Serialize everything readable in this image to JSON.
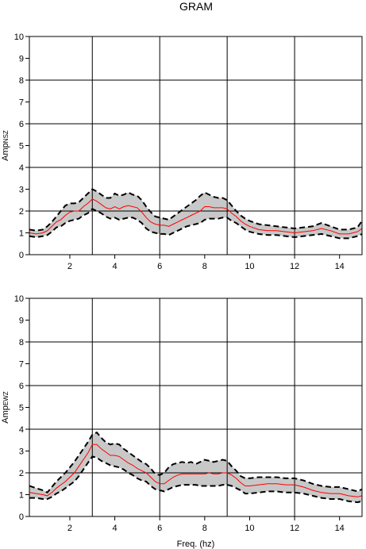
{
  "title": "GRAM",
  "chart_data": [
    {
      "type": "area",
      "ylabel_main": "Amp",
      "ylabel_sub": "NSZ",
      "xlabel": "",
      "xlim": [
        0.2,
        15.0
      ],
      "ylim": [
        0,
        10
      ],
      "xticks": [
        2,
        4,
        6,
        8,
        10,
        12,
        14
      ],
      "yticks": [
        0,
        1,
        2,
        3,
        4,
        5,
        6,
        7,
        8,
        9,
        10
      ],
      "grid_x": [
        3,
        6,
        9,
        12
      ],
      "grid_y": [
        2,
        4,
        6,
        8,
        10
      ],
      "colors": {
        "mean": "#ff0000",
        "band": "#c8c8c8",
        "bound": "#000000"
      },
      "x": [
        0.2,
        0.5,
        0.8,
        1.0,
        1.2,
        1.4,
        1.6,
        1.8,
        2.0,
        2.2,
        2.4,
        2.6,
        2.8,
        3.0,
        3.2,
        3.4,
        3.6,
        3.8,
        4.0,
        4.2,
        4.4,
        4.6,
        4.8,
        5.0,
        5.2,
        5.4,
        5.6,
        5.8,
        6.0,
        6.2,
        6.4,
        6.6,
        6.8,
        7.0,
        7.2,
        7.4,
        7.6,
        7.8,
        8.0,
        8.2,
        8.4,
        8.6,
        8.8,
        9.0,
        9.2,
        9.4,
        9.6,
        9.8,
        10.0,
        10.4,
        10.8,
        11.2,
        11.6,
        12.0,
        12.4,
        12.8,
        13.2,
        13.6,
        14.0,
        14.4,
        14.8,
        15.0
      ],
      "series": [
        {
          "values": [
            1.0,
            0.95,
            1.0,
            1.1,
            1.3,
            1.5,
            1.6,
            1.8,
            1.95,
            2.0,
            2.0,
            2.2,
            2.35,
            2.55,
            2.45,
            2.3,
            2.15,
            2.1,
            2.2,
            2.1,
            2.2,
            2.25,
            2.2,
            2.15,
            1.95,
            1.7,
            1.5,
            1.4,
            1.35,
            1.35,
            1.3,
            1.4,
            1.5,
            1.6,
            1.7,
            1.8,
            1.9,
            2.0,
            2.2,
            2.2,
            2.15,
            2.15,
            2.15,
            2.1,
            1.9,
            1.75,
            1.55,
            1.4,
            1.3,
            1.15,
            1.1,
            1.1,
            1.05,
            1.0,
            1.05,
            1.1,
            1.2,
            1.1,
            0.95,
            0.95,
            1.05,
            1.2
          ]
        },
        {
          "values": [
            1.15,
            1.1,
            1.15,
            1.3,
            1.5,
            1.75,
            2.0,
            2.25,
            2.35,
            2.35,
            2.4,
            2.6,
            2.8,
            3.0,
            2.9,
            2.75,
            2.6,
            2.6,
            2.8,
            2.7,
            2.75,
            2.85,
            2.75,
            2.7,
            2.5,
            2.2,
            1.95,
            1.75,
            1.7,
            1.65,
            1.6,
            1.75,
            1.9,
            2.05,
            2.2,
            2.35,
            2.5,
            2.7,
            2.85,
            2.75,
            2.65,
            2.6,
            2.6,
            2.5,
            2.25,
            2.0,
            1.8,
            1.65,
            1.55,
            1.4,
            1.35,
            1.3,
            1.25,
            1.2,
            1.25,
            1.3,
            1.45,
            1.3,
            1.15,
            1.15,
            1.25,
            1.55
          ]
        },
        {
          "values": [
            0.85,
            0.8,
            0.85,
            0.9,
            1.05,
            1.25,
            1.3,
            1.45,
            1.55,
            1.6,
            1.65,
            1.8,
            1.9,
            2.1,
            2.0,
            1.9,
            1.75,
            1.65,
            1.7,
            1.6,
            1.65,
            1.7,
            1.7,
            1.6,
            1.45,
            1.2,
            1.05,
            1.0,
            0.95,
            0.95,
            0.9,
            1.0,
            1.1,
            1.2,
            1.3,
            1.35,
            1.4,
            1.45,
            1.6,
            1.65,
            1.65,
            1.65,
            1.7,
            1.7,
            1.55,
            1.45,
            1.3,
            1.15,
            1.05,
            0.95,
            0.9,
            0.9,
            0.85,
            0.8,
            0.85,
            0.9,
            0.95,
            0.85,
            0.75,
            0.75,
            0.85,
            0.95
          ]
        }
      ]
    },
    {
      "type": "area",
      "ylabel_main": "Amp",
      "ylabel_sub": "EWZ",
      "xlabel": "Freq. (hz)",
      "xlim": [
        0.2,
        15.0
      ],
      "ylim": [
        0,
        10
      ],
      "xticks": [
        2,
        4,
        6,
        8,
        10,
        12,
        14
      ],
      "yticks": [
        0,
        1,
        2,
        3,
        4,
        5,
        6,
        7,
        8,
        9,
        10
      ],
      "grid_x": [
        3,
        6,
        9,
        12
      ],
      "grid_y": [
        2,
        4,
        6,
        8,
        10
      ],
      "colors": {
        "mean": "#ff0000",
        "band": "#c8c8c8",
        "bound": "#000000"
      },
      "x": [
        0.2,
        0.5,
        0.8,
        1.0,
        1.2,
        1.4,
        1.6,
        1.8,
        2.0,
        2.2,
        2.4,
        2.6,
        2.8,
        3.0,
        3.2,
        3.4,
        3.6,
        3.8,
        4.0,
        4.2,
        4.4,
        4.6,
        4.8,
        5.0,
        5.2,
        5.4,
        5.6,
        5.8,
        6.0,
        6.2,
        6.4,
        6.6,
        6.8,
        7.0,
        7.2,
        7.4,
        7.6,
        7.8,
        8.0,
        8.2,
        8.4,
        8.6,
        8.8,
        9.0,
        9.2,
        9.4,
        9.6,
        9.8,
        10.0,
        10.4,
        10.8,
        11.2,
        11.6,
        12.0,
        12.4,
        12.8,
        13.2,
        13.6,
        14.0,
        14.4,
        14.8,
        15.0
      ],
      "series": [
        {
          "values": [
            1.1,
            1.05,
            1.0,
            0.95,
            1.1,
            1.3,
            1.45,
            1.6,
            1.8,
            2.0,
            2.3,
            2.6,
            2.9,
            3.3,
            3.3,
            3.1,
            2.95,
            2.8,
            2.8,
            2.75,
            2.6,
            2.45,
            2.35,
            2.2,
            2.1,
            2.0,
            1.8,
            1.6,
            1.5,
            1.5,
            1.65,
            1.8,
            1.9,
            1.95,
            1.95,
            1.95,
            1.95,
            1.95,
            1.95,
            2.0,
            1.95,
            1.95,
            2.0,
            2.0,
            1.9,
            1.75,
            1.55,
            1.4,
            1.4,
            1.45,
            1.5,
            1.5,
            1.45,
            1.45,
            1.35,
            1.2,
            1.1,
            1.05,
            1.05,
            0.95,
            0.9,
            0.95
          ]
        },
        {
          "values": [
            1.4,
            1.3,
            1.2,
            1.1,
            1.35,
            1.6,
            1.8,
            2.0,
            2.25,
            2.5,
            2.8,
            3.1,
            3.4,
            3.75,
            3.85,
            3.6,
            3.4,
            3.3,
            3.35,
            3.3,
            3.1,
            2.95,
            2.8,
            2.65,
            2.5,
            2.4,
            2.2,
            1.95,
            1.9,
            2.0,
            2.25,
            2.4,
            2.45,
            2.5,
            2.45,
            2.5,
            2.4,
            2.5,
            2.6,
            2.55,
            2.5,
            2.55,
            2.6,
            2.55,
            2.3,
            2.1,
            1.85,
            1.75,
            1.75,
            1.8,
            1.8,
            1.8,
            1.75,
            1.75,
            1.65,
            1.5,
            1.4,
            1.35,
            1.35,
            1.25,
            1.15,
            1.25
          ]
        },
        {
          "values": [
            0.85,
            0.85,
            0.8,
            0.8,
            0.9,
            1.05,
            1.15,
            1.3,
            1.45,
            1.6,
            1.85,
            2.15,
            2.45,
            2.75,
            2.7,
            2.55,
            2.45,
            2.35,
            2.3,
            2.25,
            2.15,
            2.0,
            1.9,
            1.75,
            1.65,
            1.6,
            1.4,
            1.25,
            1.2,
            1.15,
            1.25,
            1.35,
            1.4,
            1.45,
            1.45,
            1.45,
            1.45,
            1.4,
            1.4,
            1.4,
            1.4,
            1.4,
            1.45,
            1.45,
            1.4,
            1.3,
            1.2,
            1.05,
            1.05,
            1.1,
            1.15,
            1.15,
            1.1,
            1.1,
            1.05,
            0.95,
            0.85,
            0.8,
            0.8,
            0.7,
            0.65,
            0.7
          ]
        }
      ]
    }
  ]
}
